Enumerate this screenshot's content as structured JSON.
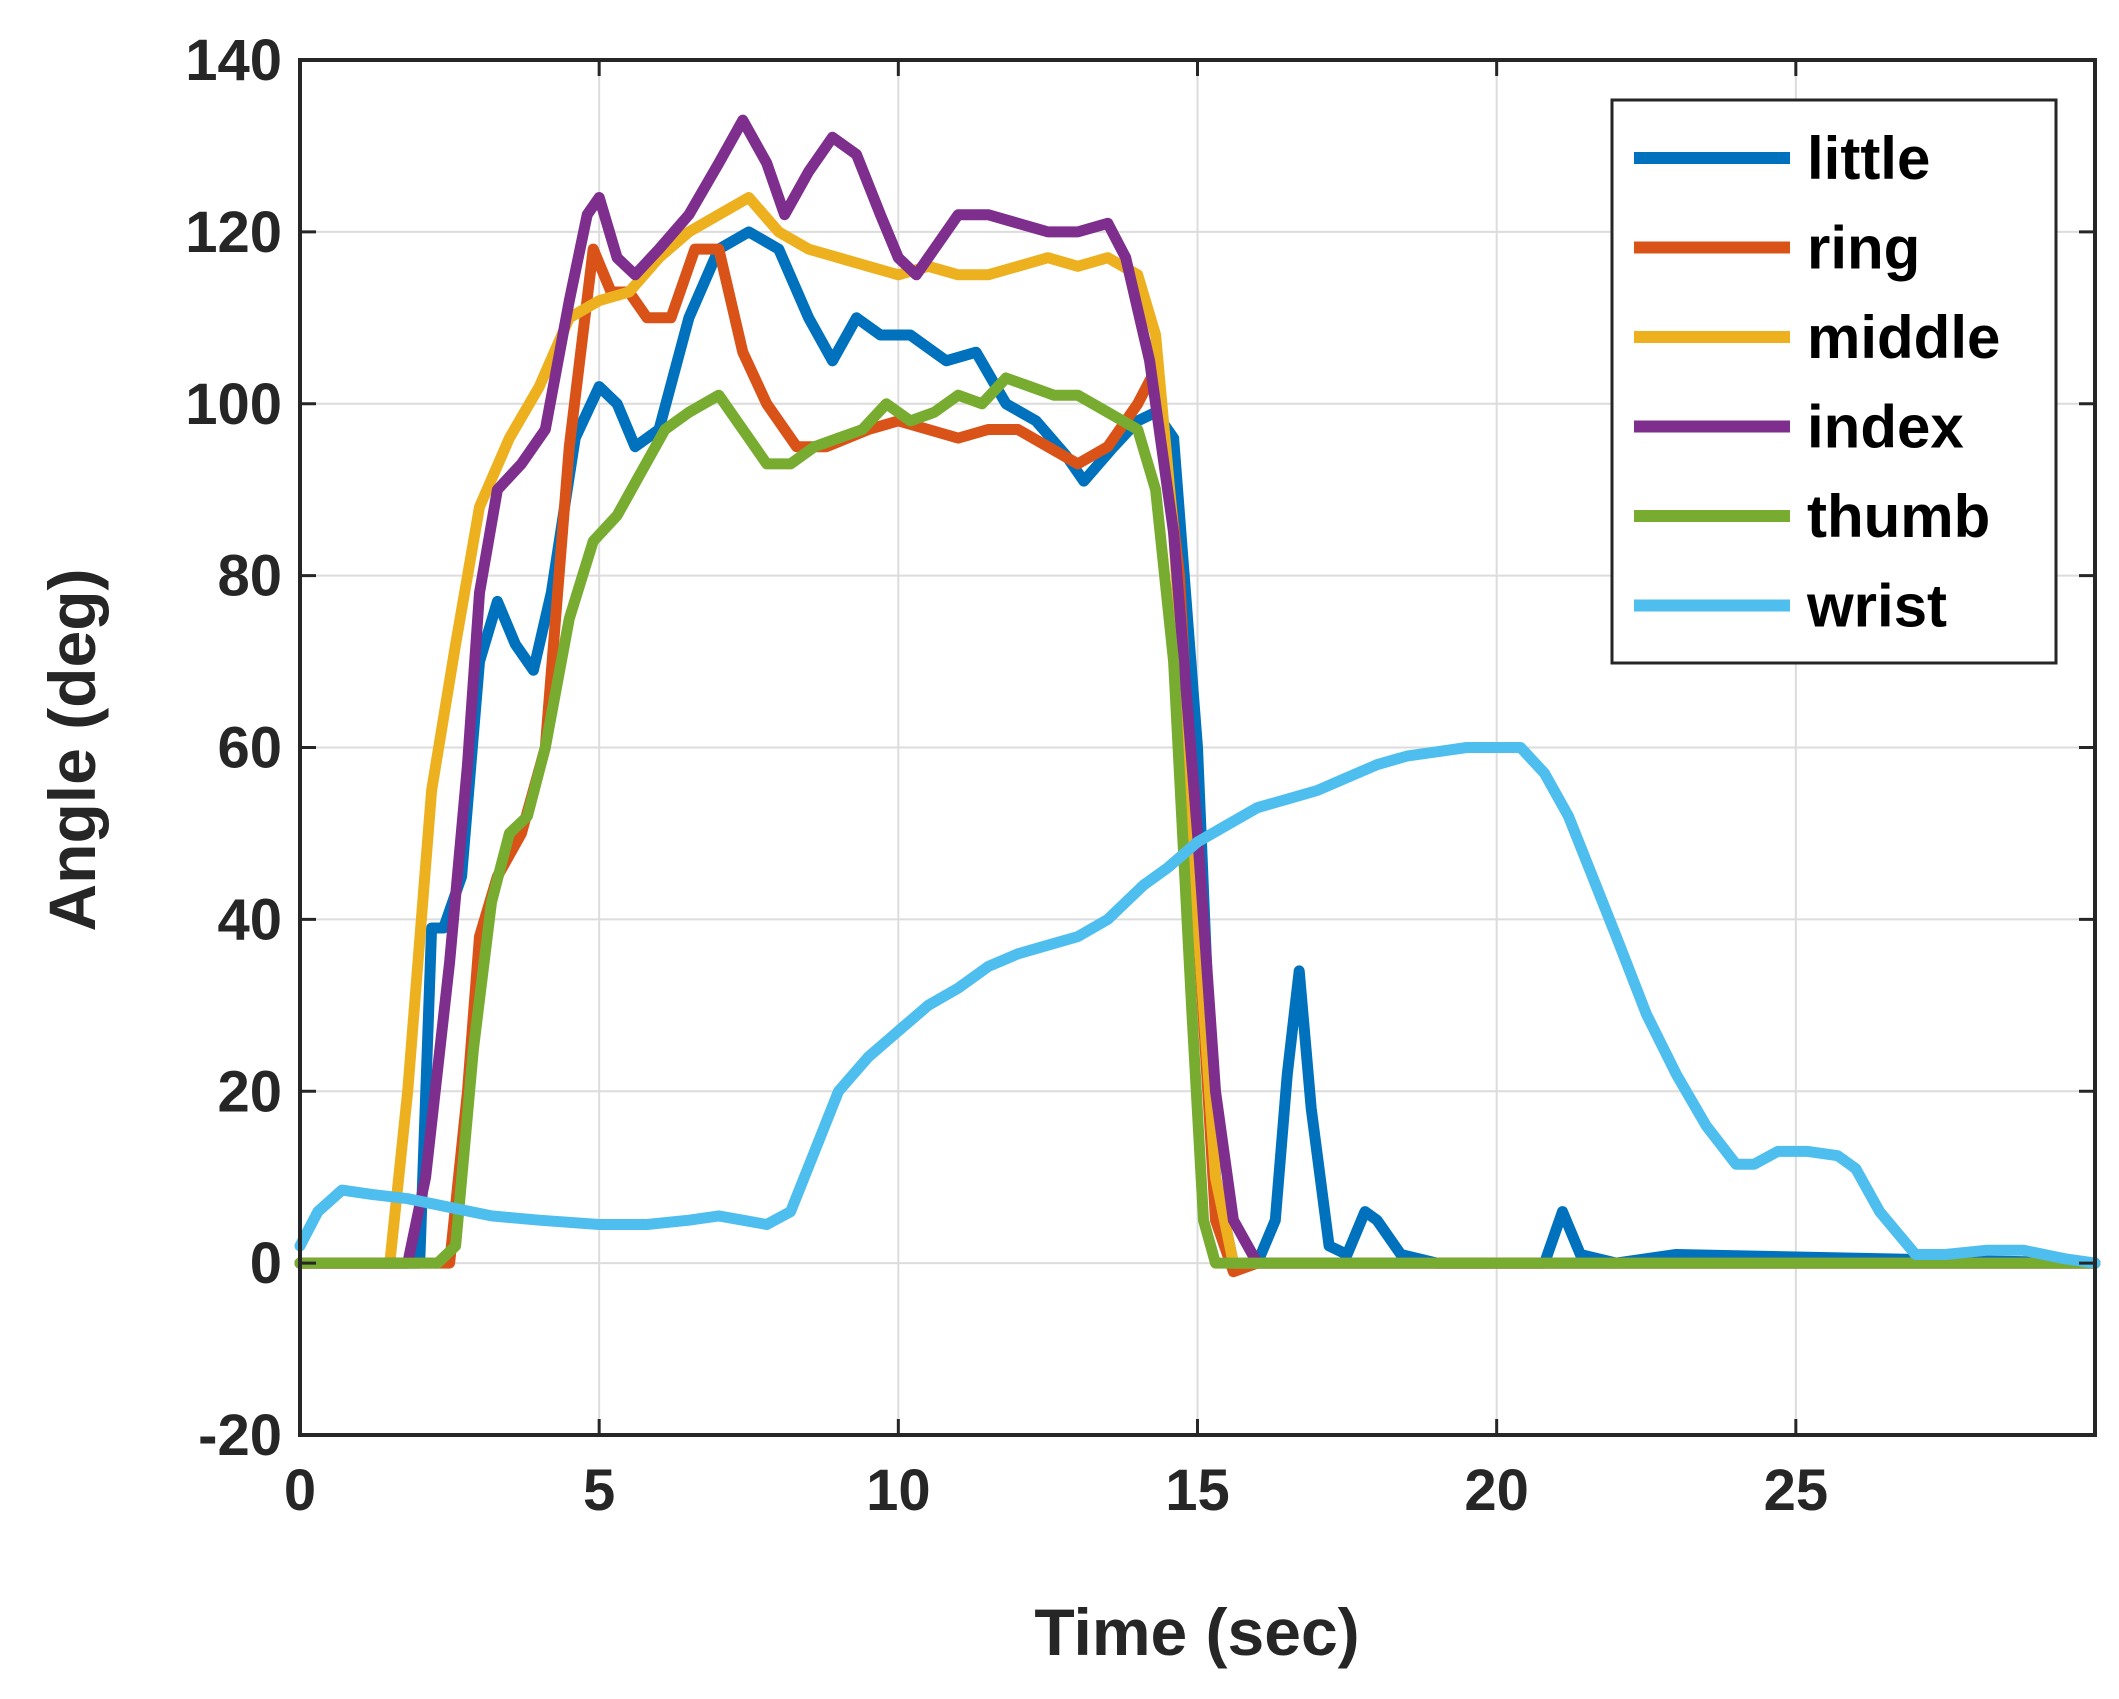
{
  "chart_data": {
    "type": "line",
    "title": "",
    "xlabel": "Time (sec)",
    "ylabel": "Angle (deg)",
    "xlim": [
      0,
      30
    ],
    "ylim": [
      -20,
      140
    ],
    "xticks": [
      0,
      5,
      10,
      15,
      20,
      25
    ],
    "yticks": [
      -20,
      0,
      20,
      40,
      60,
      80,
      100,
      120,
      140
    ],
    "grid": true,
    "legend_position": "top-right",
    "series": [
      {
        "name": "little",
        "color": "#0072BD",
        "x": [
          0,
          2.0,
          2.2,
          2.4,
          2.7,
          3.0,
          3.3,
          3.6,
          3.9,
          4.2,
          4.6,
          5.0,
          5.3,
          5.6,
          6.0,
          6.5,
          7.0,
          7.5,
          8.0,
          8.5,
          8.9,
          9.3,
          9.7,
          10.2,
          10.8,
          11.3,
          11.8,
          12.3,
          12.8,
          13.1,
          13.6,
          14.0,
          14.3,
          14.6,
          15.0,
          15.3,
          15.6,
          16.0,
          16.3,
          16.5,
          16.7,
          16.9,
          17.2,
          17.5,
          17.8,
          18.0,
          18.4,
          19.0,
          20.0,
          20.8,
          21.1,
          21.4,
          22.0,
          23.0,
          30
        ],
        "y": [
          0,
          0,
          39,
          39,
          45,
          70,
          77,
          72,
          69,
          78,
          96,
          102,
          100,
          95,
          97,
          110,
          118,
          120,
          118,
          110,
          105,
          110,
          108,
          108,
          105,
          106,
          100,
          98,
          94,
          91,
          95,
          98,
          99,
          96,
          60,
          10,
          0,
          0,
          5,
          22,
          34,
          18,
          2,
          1,
          6,
          5,
          1,
          0,
          0,
          0,
          6,
          1,
          0,
          1,
          0
        ]
      },
      {
        "name": "ring",
        "color": "#D95319",
        "x": [
          0,
          2.5,
          2.8,
          3.0,
          3.3,
          3.7,
          4.1,
          4.5,
          4.9,
          5.2,
          5.5,
          5.8,
          6.2,
          6.6,
          7.0,
          7.4,
          7.8,
          8.3,
          8.8,
          9.5,
          10.0,
          10.5,
          11.0,
          11.5,
          12.0,
          12.5,
          13.0,
          13.5,
          14.0,
          14.3,
          14.7,
          15.0,
          15.3,
          15.6,
          16.0,
          30
        ],
        "y": [
          0,
          0,
          20,
          38,
          45,
          50,
          60,
          95,
          118,
          113,
          113,
          110,
          110,
          118,
          118,
          106,
          100,
          95,
          95,
          97,
          98,
          97,
          96,
          97,
          97,
          95,
          93,
          95,
          100,
          104,
          80,
          40,
          5,
          -1,
          0,
          0
        ]
      },
      {
        "name": "middle",
        "color": "#EDB120",
        "x": [
          0,
          1.5,
          1.8,
          2.2,
          2.6,
          3.0,
          3.5,
          4.0,
          4.5,
          5.0,
          5.5,
          6.0,
          6.5,
          7.0,
          7.5,
          8.0,
          8.5,
          9.0,
          9.5,
          10.0,
          10.5,
          11.0,
          11.5,
          12.0,
          12.5,
          13.0,
          13.5,
          14.0,
          14.3,
          14.6,
          15.0,
          15.3,
          15.6,
          16.0,
          30
        ],
        "y": [
          0,
          0,
          20,
          55,
          72,
          88,
          96,
          102,
          110,
          112,
          113,
          117,
          120,
          122,
          124,
          120,
          118,
          117,
          116,
          115,
          116,
          115,
          115,
          116,
          117,
          116,
          117,
          115,
          108,
          85,
          40,
          10,
          0,
          0,
          0
        ]
      },
      {
        "name": "index",
        "color": "#7E2F8E",
        "x": [
          0,
          1.8,
          2.1,
          2.5,
          2.8,
          3.0,
          3.3,
          3.7,
          4.1,
          4.5,
          4.8,
          5.0,
          5.3,
          5.6,
          6.0,
          6.5,
          7.0,
          7.4,
          7.8,
          8.1,
          8.5,
          8.9,
          9.3,
          9.7,
          10.0,
          10.3,
          10.7,
          11.0,
          11.5,
          12.0,
          12.5,
          13.0,
          13.5,
          13.8,
          14.2,
          14.6,
          15.0,
          15.3,
          15.6,
          16.0,
          16.3,
          30
        ],
        "y": [
          0,
          0,
          10,
          35,
          58,
          78,
          90,
          93,
          97,
          112,
          122,
          124,
          117,
          115,
          118,
          122,
          128,
          133,
          128,
          122,
          127,
          131,
          129,
          122,
          117,
          115,
          119,
          122,
          122,
          121,
          120,
          120,
          121,
          117,
          105,
          85,
          50,
          20,
          5,
          0,
          0,
          0
        ]
      },
      {
        "name": "thumb",
        "color": "#77AC30",
        "x": [
          0,
          2.3,
          2.6,
          2.9,
          3.2,
          3.5,
          3.8,
          4.1,
          4.5,
          4.9,
          5.3,
          5.7,
          6.1,
          6.5,
          7.0,
          7.5,
          7.8,
          8.2,
          8.6,
          9.0,
          9.4,
          9.8,
          10.2,
          10.6,
          11.0,
          11.4,
          11.8,
          12.2,
          12.6,
          13.0,
          13.5,
          14.0,
          14.3,
          14.6,
          14.9,
          15.1,
          15.3,
          15.6,
          16.0,
          30
        ],
        "y": [
          0,
          0,
          2,
          25,
          42,
          50,
          52,
          60,
          75,
          84,
          87,
          92,
          97,
          99,
          101,
          96,
          93,
          93,
          95,
          96,
          97,
          100,
          98,
          99,
          101,
          100,
          103,
          102,
          101,
          101,
          99,
          97,
          90,
          70,
          30,
          5,
          0,
          0,
          0,
          0
        ]
      },
      {
        "name": "wrist",
        "color": "#4DBEEE",
        "x": [
          0,
          0.3,
          0.7,
          1.2,
          1.8,
          2.5,
          3.2,
          4.0,
          5.0,
          5.8,
          6.5,
          7.0,
          7.4,
          7.8,
          8.2,
          8.6,
          9.0,
          9.5,
          10.0,
          10.5,
          11.0,
          11.5,
          12.0,
          12.5,
          13.0,
          13.5,
          13.8,
          14.1,
          14.5,
          15.0,
          15.5,
          16.0,
          16.5,
          17.0,
          17.5,
          18.0,
          18.5,
          19.0,
          19.5,
          20.0,
          20.4,
          20.8,
          21.2,
          21.6,
          22.0,
          22.5,
          23.0,
          23.5,
          24.0,
          24.3,
          24.7,
          25.2,
          25.7,
          26.0,
          26.4,
          27.0,
          27.5,
          28.2,
          28.8,
          29.5,
          30
        ],
        "y": [
          2,
          6,
          8.5,
          8,
          7.5,
          6.5,
          5.5,
          5,
          4.5,
          4.5,
          5,
          5.5,
          5,
          4.5,
          6,
          13,
          20,
          24,
          27,
          30,
          32,
          34.5,
          36,
          37,
          38,
          40,
          42,
          44,
          46,
          49,
          51,
          53,
          54,
          55,
          56.5,
          58,
          59,
          59.5,
          60,
          60,
          60,
          57,
          52,
          45,
          38,
          29,
          22,
          16,
          11.5,
          11.5,
          13,
          13,
          12.5,
          11,
          6,
          1,
          1,
          1.5,
          1.5,
          0.5,
          0
        ]
      }
    ]
  }
}
